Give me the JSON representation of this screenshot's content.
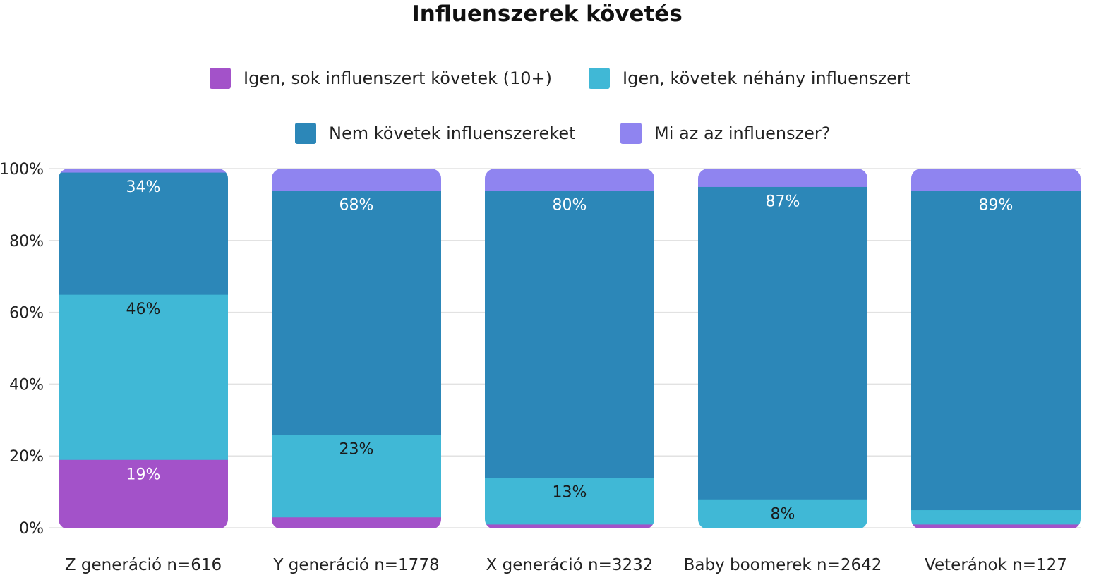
{
  "chart_data": {
    "type": "bar",
    "stacked": true,
    "title": "Influenszerek követés",
    "categories": [
      "Z generáció n=616",
      "Y generáció n=1778",
      "X generáció n=3232",
      "Baby boomerek n=2642",
      "Veteránok n=127"
    ],
    "series": [
      {
        "name": "Igen, sok influenszert követek (10+)",
        "color": "#a352c9",
        "values": [
          19,
          3,
          1,
          0,
          1
        ],
        "labels": [
          "19%",
          "",
          "",
          "",
          ""
        ]
      },
      {
        "name": "Igen, követek néhány influenszert",
        "color": "#40b8d6",
        "values": [
          46,
          23,
          13,
          8,
          4
        ],
        "labels": [
          "46%",
          "23%",
          "13%",
          "8%",
          ""
        ]
      },
      {
        "name": "Nem követek influenszereket",
        "color": "#2c87b8",
        "values": [
          34,
          68,
          80,
          87,
          89
        ],
        "labels": [
          "34%",
          "68%",
          "80%",
          "87%",
          "89%"
        ]
      },
      {
        "name": "Mi az az influenszer?",
        "color": "#8f84f0",
        "values": [
          1,
          6,
          6,
          5,
          6
        ],
        "labels": [
          "",
          "",
          "",
          "",
          ""
        ]
      }
    ],
    "yticks": [
      "0%",
      "20%",
      "40%",
      "60%",
      "80%",
      "100%"
    ],
    "ylim": [
      0,
      100
    ],
    "grid": true,
    "legend": "top"
  }
}
